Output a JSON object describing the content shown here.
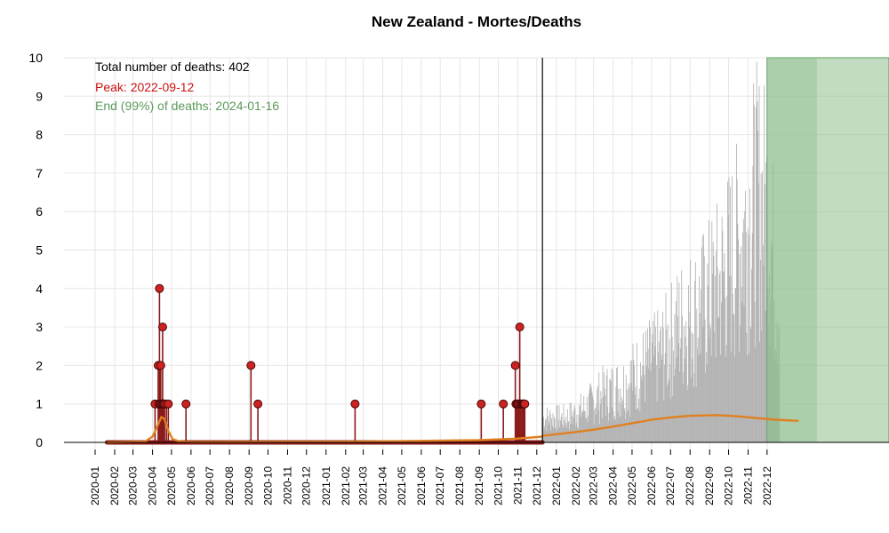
{
  "chart_data": {
    "type": "bar",
    "title": "New Zealand - Mortes/Deaths",
    "xlabel": "",
    "ylabel": "",
    "ylim": [
      0,
      10
    ],
    "yticks": [
      "0",
      "1",
      "2",
      "3",
      "4",
      "5",
      "6",
      "7",
      "8",
      "9",
      "10"
    ],
    "xticks": [
      "2020-01",
      "2020-02",
      "2020-03",
      "2020-04",
      "2020-05",
      "2020-06",
      "2020-07",
      "2020-08",
      "2020-09",
      "2020-10",
      "2020-11",
      "2020-12",
      "2021-01",
      "2021-02",
      "2021-03",
      "2021-04",
      "2021-05",
      "2021-06",
      "2021-07",
      "2021-08",
      "2021-09",
      "2021-10",
      "2021-11",
      "2021-12",
      "2022-01",
      "2022-02",
      "2022-03",
      "2022-04",
      "2022-05",
      "2022-06",
      "2022-07",
      "2022-08",
      "2022-09",
      "2022-10",
      "2022-11",
      "2022-12"
    ],
    "x_start": "2020-01-01",
    "forecast_start": "2021-12-10",
    "projection_start": "2022-12-01",
    "projection_end": "2023-02-18",
    "grid": true,
    "annotations": {
      "total": "Total number of deaths: 402",
      "peak": "Peak: 2022-09-12",
      "end": "End (99%) of deaths: 2024-01-16"
    },
    "observed_deaths": [
      {
        "date": "2020-04-05",
        "value": 1
      },
      {
        "date": "2020-04-10",
        "value": 2
      },
      {
        "date": "2020-04-11",
        "value": 1
      },
      {
        "date": "2020-04-12",
        "value": 4
      },
      {
        "date": "2020-04-13",
        "value": 1
      },
      {
        "date": "2020-04-14",
        "value": 2
      },
      {
        "date": "2020-04-15",
        "value": 1
      },
      {
        "date": "2020-04-16",
        "value": 1
      },
      {
        "date": "2020-04-17",
        "value": 3
      },
      {
        "date": "2020-04-18",
        "value": 1
      },
      {
        "date": "2020-04-19",
        "value": 1
      },
      {
        "date": "2020-04-20",
        "value": 1
      },
      {
        "date": "2020-04-23",
        "value": 1
      },
      {
        "date": "2020-04-26",
        "value": 1
      },
      {
        "date": "2020-05-24",
        "value": 1
      },
      {
        "date": "2020-09-04",
        "value": 2
      },
      {
        "date": "2020-09-15",
        "value": 1
      },
      {
        "date": "2021-02-16",
        "value": 1
      },
      {
        "date": "2021-09-04",
        "value": 1
      },
      {
        "date": "2021-10-09",
        "value": 1
      },
      {
        "date": "2021-10-28",
        "value": 2
      },
      {
        "date": "2021-10-29",
        "value": 1
      },
      {
        "date": "2021-10-31",
        "value": 1
      },
      {
        "date": "2021-11-01",
        "value": 1
      },
      {
        "date": "2021-11-02",
        "value": 1
      },
      {
        "date": "2021-11-04",
        "value": 3
      },
      {
        "date": "2021-11-05",
        "value": 1
      },
      {
        "date": "2021-11-06",
        "value": 1
      },
      {
        "date": "2021-11-08",
        "value": 1
      },
      {
        "date": "2021-11-09",
        "value": 1
      },
      {
        "date": "2021-11-10",
        "value": 1
      },
      {
        "date": "2021-11-11",
        "value": 1
      },
      {
        "date": "2021-11-12",
        "value": 1
      }
    ],
    "forecast_envelope": [
      {
        "date": "2021-12-10",
        "value": 1.0
      },
      {
        "date": "2022-01-15",
        "value": 1.0
      },
      {
        "date": "2022-02-15",
        "value": 1.4
      },
      {
        "date": "2022-03-15",
        "value": 2.0
      },
      {
        "date": "2022-04-15",
        "value": 2.3
      },
      {
        "date": "2022-05-15",
        "value": 3.0
      },
      {
        "date": "2022-06-15",
        "value": 3.6
      },
      {
        "date": "2022-07-15",
        "value": 4.8
      },
      {
        "date": "2022-08-15",
        "value": 5.4
      },
      {
        "date": "2022-09-15",
        "value": 6.5
      },
      {
        "date": "2022-10-15",
        "value": 8.0
      },
      {
        "date": "2022-11-15",
        "value": 10.0
      },
      {
        "date": "2022-12-01",
        "value": 9.5
      },
      {
        "date": "2022-12-20",
        "value": 5.5
      }
    ],
    "trend_lines": [
      {
        "points": [
          {
            "date": "2020-01-20",
            "value": 0.0
          },
          {
            "date": "2020-03-20",
            "value": 0.02
          },
          {
            "date": "2020-04-01",
            "value": 0.15
          },
          {
            "date": "2020-04-08",
            "value": 0.4
          },
          {
            "date": "2020-04-15",
            "value": 0.66
          },
          {
            "date": "2020-04-20",
            "value": 0.6
          },
          {
            "date": "2020-04-26",
            "value": 0.3
          },
          {
            "date": "2020-05-03",
            "value": 0.08
          },
          {
            "date": "2020-05-15",
            "value": 0.02
          },
          {
            "date": "2020-06-01",
            "value": 0.01
          },
          {
            "date": "2021-03-01",
            "value": 0.02
          },
          {
            "date": "2021-09-01",
            "value": 0.06
          },
          {
            "date": "2021-11-01",
            "value": 0.1
          },
          {
            "date": "2021-12-10",
            "value": 0.15
          }
        ]
      },
      {
        "points": [
          {
            "date": "2021-12-10",
            "value": 0.17
          },
          {
            "date": "2022-02-01",
            "value": 0.27
          },
          {
            "date": "2022-03-01",
            "value": 0.33
          },
          {
            "date": "2022-04-01",
            "value": 0.41
          },
          {
            "date": "2022-05-01",
            "value": 0.5
          },
          {
            "date": "2022-06-01",
            "value": 0.59
          },
          {
            "date": "2022-07-01",
            "value": 0.65
          },
          {
            "date": "2022-08-01",
            "value": 0.69
          },
          {
            "date": "2022-09-12",
            "value": 0.71
          },
          {
            "date": "2022-10-15",
            "value": 0.68
          },
          {
            "date": "2022-11-15",
            "value": 0.63
          },
          {
            "date": "2022-12-15",
            "value": 0.59
          },
          {
            "date": "2023-01-20",
            "value": 0.56
          }
        ]
      }
    ],
    "colors": {
      "observed": "#8b1a1a",
      "observed_point": "#cc2222",
      "forecast_bar": "#b3b3b3",
      "trend": "#e08020",
      "projection_fill": "#8fbf8f",
      "projection_stroke": "#5a9a5a",
      "peak_text": "#cc1111",
      "end_text": "#5a9a5a",
      "grid": "#e6e6e6"
    }
  }
}
